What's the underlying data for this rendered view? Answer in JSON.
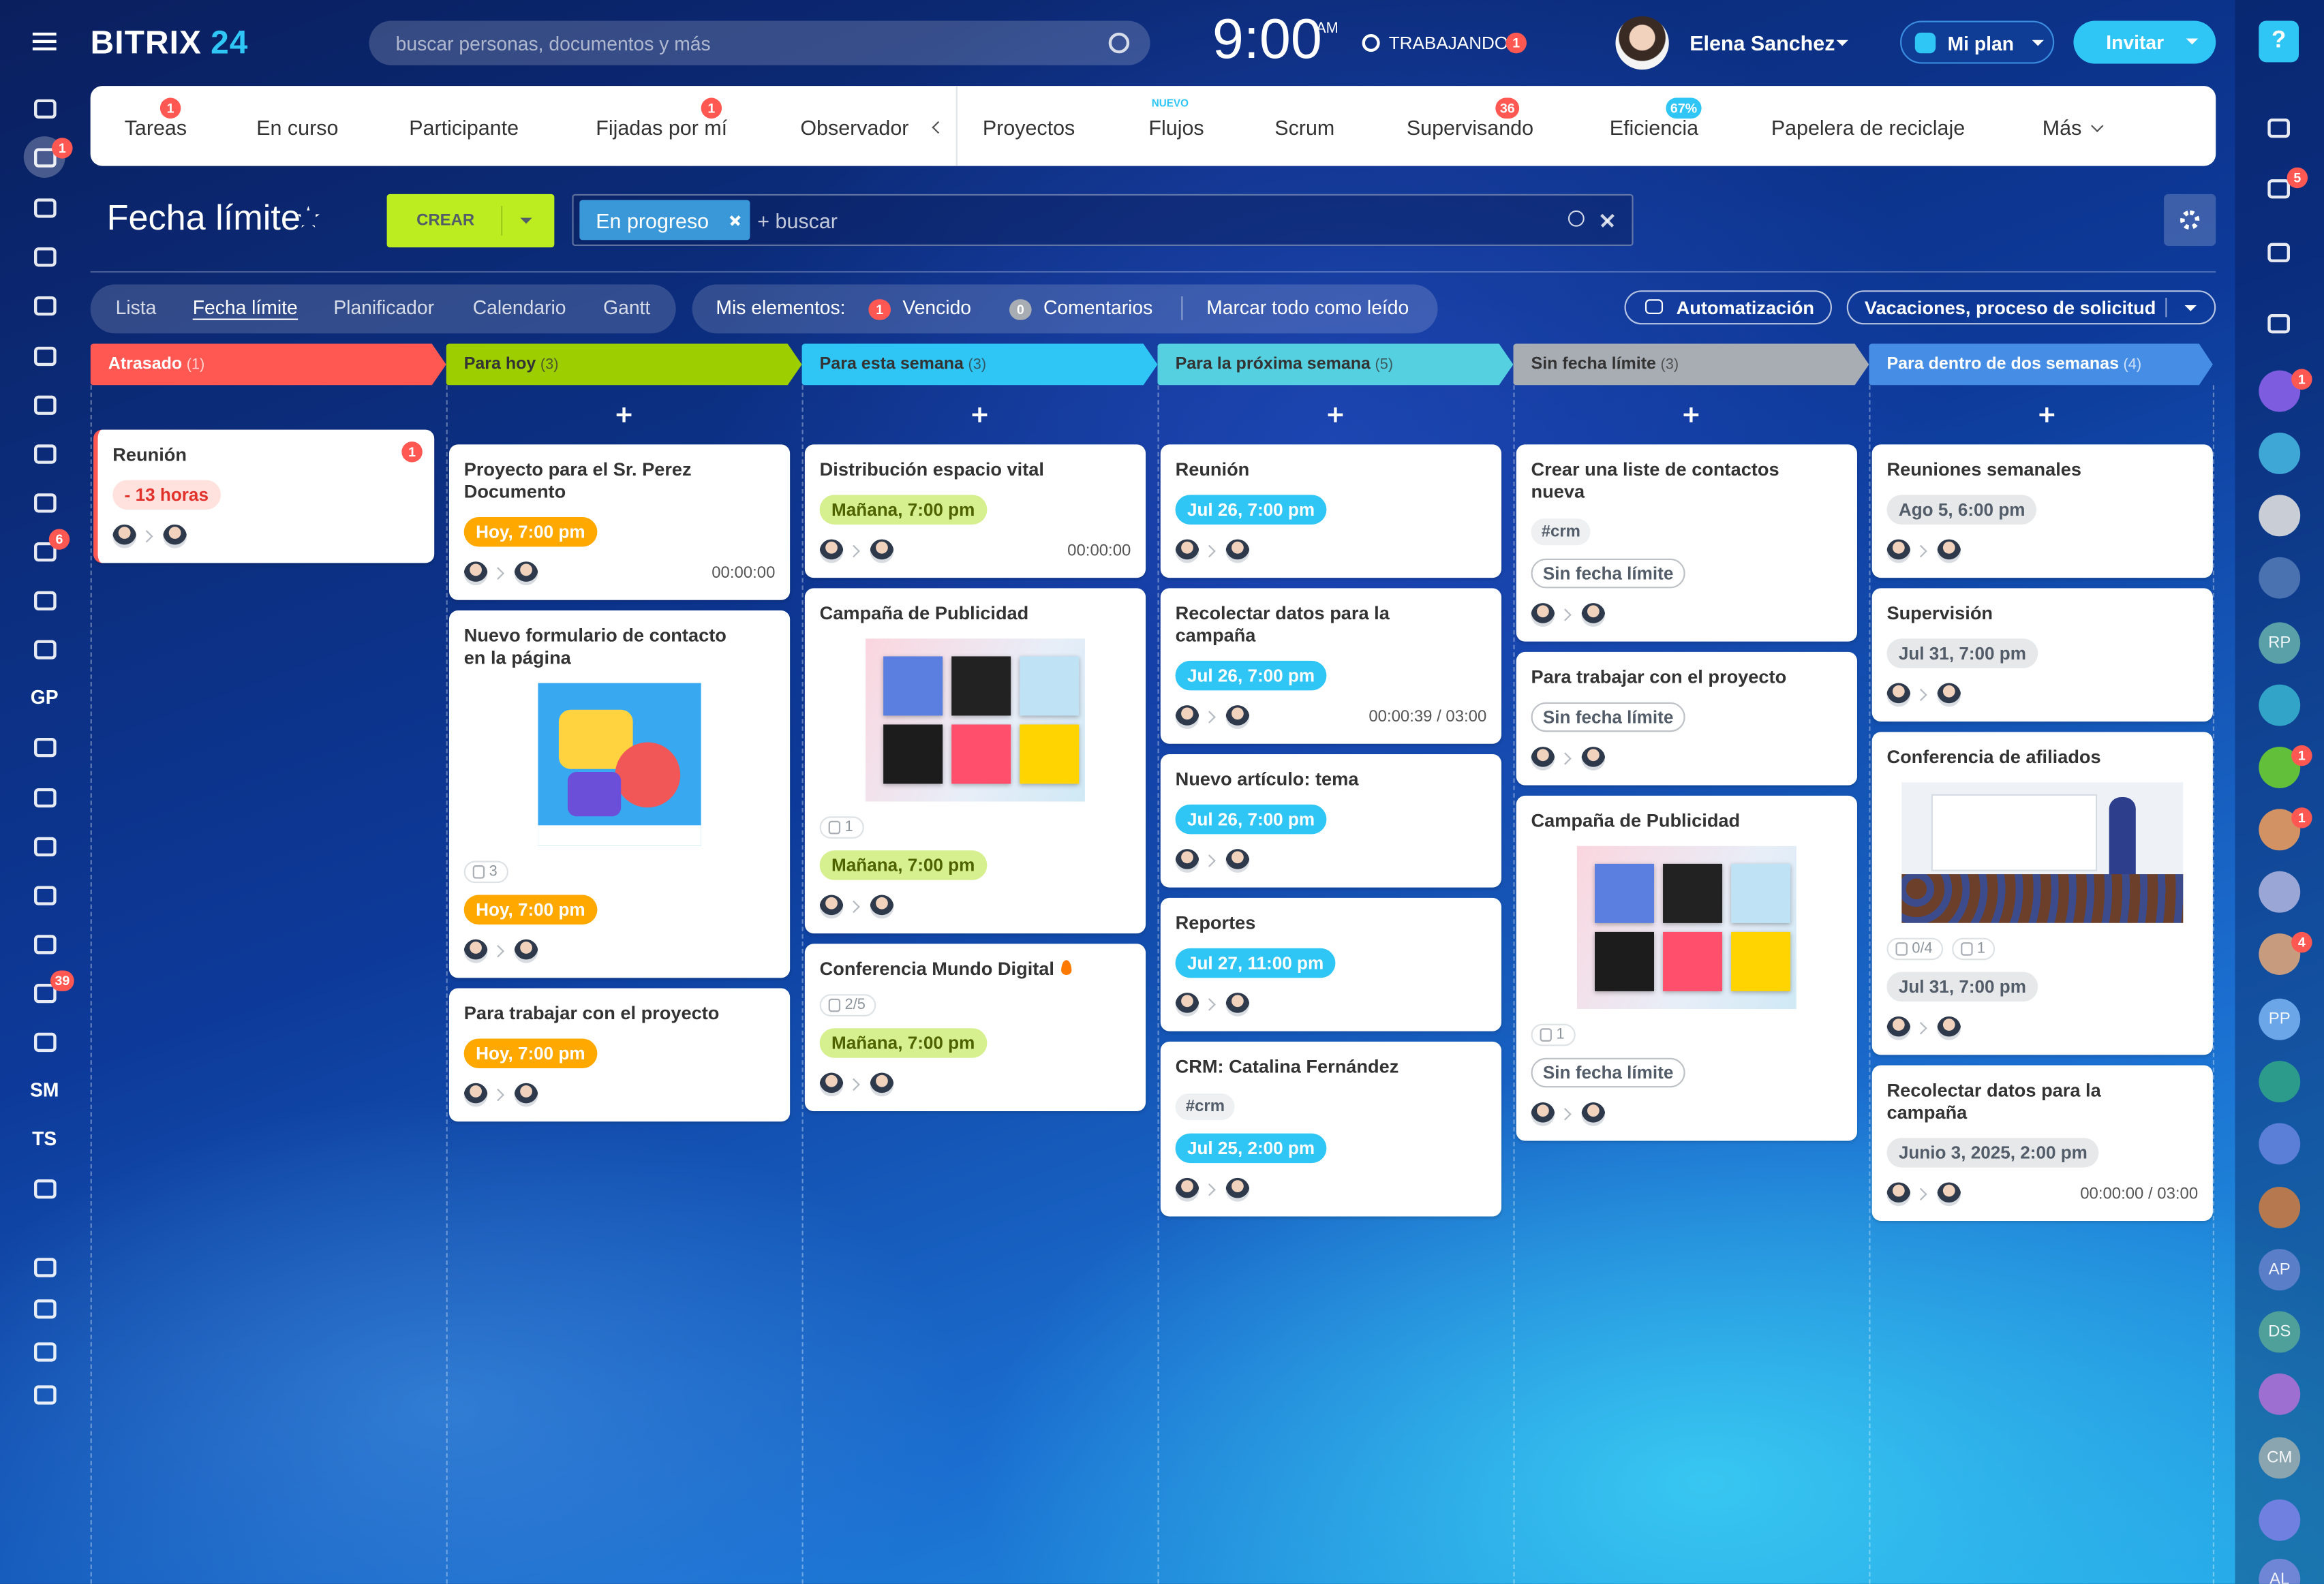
{
  "header": {
    "logo": "BITRIX",
    "logo_accent": "24",
    "search_placeholder": "buscar personas, documentos y más",
    "clock": "9:00",
    "clock_period": "AM",
    "status": "TRABAJANDO",
    "status_badge": 1,
    "user_name": "Elena Sanchez",
    "plan_button": "Mi plan",
    "invite_button": "Invitar"
  },
  "left_sidebar": {
    "labels": [
      "GP",
      "SM",
      "TS"
    ],
    "badges": [
      1,
      6,
      39
    ]
  },
  "right_sidebar": {
    "help": "?",
    "notification_badge": 5,
    "avatar_badges": [
      1,
      1,
      1,
      4
    ],
    "initials": [
      "RP",
      "PP",
      "AP",
      "DS",
      "CM",
      "AL"
    ]
  },
  "tabs": [
    {
      "label": "Tareas",
      "badge": 1
    },
    {
      "label": "En curso"
    },
    {
      "label": "Participante"
    },
    {
      "label": "Fijadas por mí",
      "badge": 1
    },
    {
      "label": "Observador"
    },
    {
      "label": "Proyectos"
    },
    {
      "label": "Flujos",
      "note": "NUEVO"
    },
    {
      "label": "Scrum"
    },
    {
      "label": "Supervisando",
      "badge": 36
    },
    {
      "label": "Eficiencia",
      "badge": "67%"
    },
    {
      "label": "Papelera de reciclaje"
    },
    {
      "label": "Más"
    }
  ],
  "toolbar": {
    "title": "Fecha límite",
    "create_button": "CREAR",
    "filter_tag": "En progreso",
    "search_placeholder": "+ buscar"
  },
  "view_tabs": [
    "Lista",
    "Fecha límite",
    "Planificador",
    "Calendario",
    "Gantt"
  ],
  "counters": {
    "label": "Mis elementos:",
    "overdue_count": 1,
    "overdue": "Vencido",
    "comments_count": 0,
    "comments": "Comentarios",
    "mark_read": "Marcar todo como leído"
  },
  "actions": [
    "Automatización",
    "Vacaciones, proceso de solicitud"
  ],
  "columns": [
    {
      "title": "Atrasado",
      "count": "(1)",
      "color": "#ff5752",
      "cards": [
        {
          "title": "Reunión",
          "badge": 1,
          "deadline": "- 13 horas"
        }
      ]
    },
    {
      "title": "Para hoy",
      "count": "(3)",
      "color": "#9dcf00",
      "cards": [
        {
          "title": "Proyecto para el Sr. Perez Documento",
          "deadline": "Hoy, 7:00 pm",
          "timer": "00:00:00"
        },
        {
          "title": "Nuevo formulario de contacto en la página",
          "attachments": 3,
          "deadline": "Hoy, 7:00 pm"
        },
        {
          "title": "Para trabajar con el proyecto",
          "deadline": "Hoy, 7:00 pm"
        }
      ]
    },
    {
      "title": "Para esta semana",
      "count": "(3)",
      "color": "#2fc6f6",
      "cards": [
        {
          "title": "Distribución espacio vital",
          "deadline": "Mañana, 7:00 pm",
          "timer": "00:00:00"
        },
        {
          "title": "Campaña de Publicidad",
          "attachments": 1,
          "deadline": "Mañana, 7:00 pm"
        },
        {
          "title": "Conferencia Mundo Digital",
          "checklist": "2/5",
          "deadline": "Mañana, 7:00 pm"
        }
      ]
    },
    {
      "title": "Para la próxima semana",
      "count": "(5)",
      "color": "#55d0e0",
      "cards": [
        {
          "title": "Reunión",
          "deadline": "Jul 26, 7:00 pm"
        },
        {
          "title": "Recolectar datos para la campaña",
          "deadline": "Jul 26, 7:00 pm",
          "timer": "00:00:39 / 03:00"
        },
        {
          "title": "Nuevo artículo: tema",
          "deadline": "Jul 26, 7:00 pm"
        },
        {
          "title": "Reportes",
          "deadline": "Jul 27, 11:00 pm"
        },
        {
          "title": "CRM: Catalina Fernández",
          "tag": "#crm",
          "deadline": "Jul 25, 2:00 pm"
        }
      ]
    },
    {
      "title": "Sin fecha límite",
      "count": "(3)",
      "color": "#a8adb4",
      "cards": [
        {
          "title": "Crear una liste de contactos nueva",
          "tag": "#crm",
          "deadline": "Sin fecha límite"
        },
        {
          "title": "Para trabajar con el proyecto",
          "deadline": "Sin fecha límite"
        },
        {
          "title": "Campaña de Publicidad",
          "attachments": 1,
          "deadline": "Sin fecha límite"
        }
      ]
    },
    {
      "title": "Para dentro de dos semanas",
      "count": "(4)",
      "color": "#468ee5",
      "cards": [
        {
          "title": "Reuniones semanales",
          "deadline": "Ago 5, 6:00 pm"
        },
        {
          "title": "Supervisión",
          "deadline": "Jul 31, 7:00 pm"
        },
        {
          "title": "Conferencia de afiliados",
          "checklist": "0/4",
          "attachments": 1,
          "deadline": "Jul 31, 7:00 pm"
        },
        {
          "title": "Recolectar datos para la campaña",
          "deadline": "Junio 3, 2025, 2:00 pm",
          "timer": "00:00:00 / 03:00"
        }
      ]
    }
  ]
}
